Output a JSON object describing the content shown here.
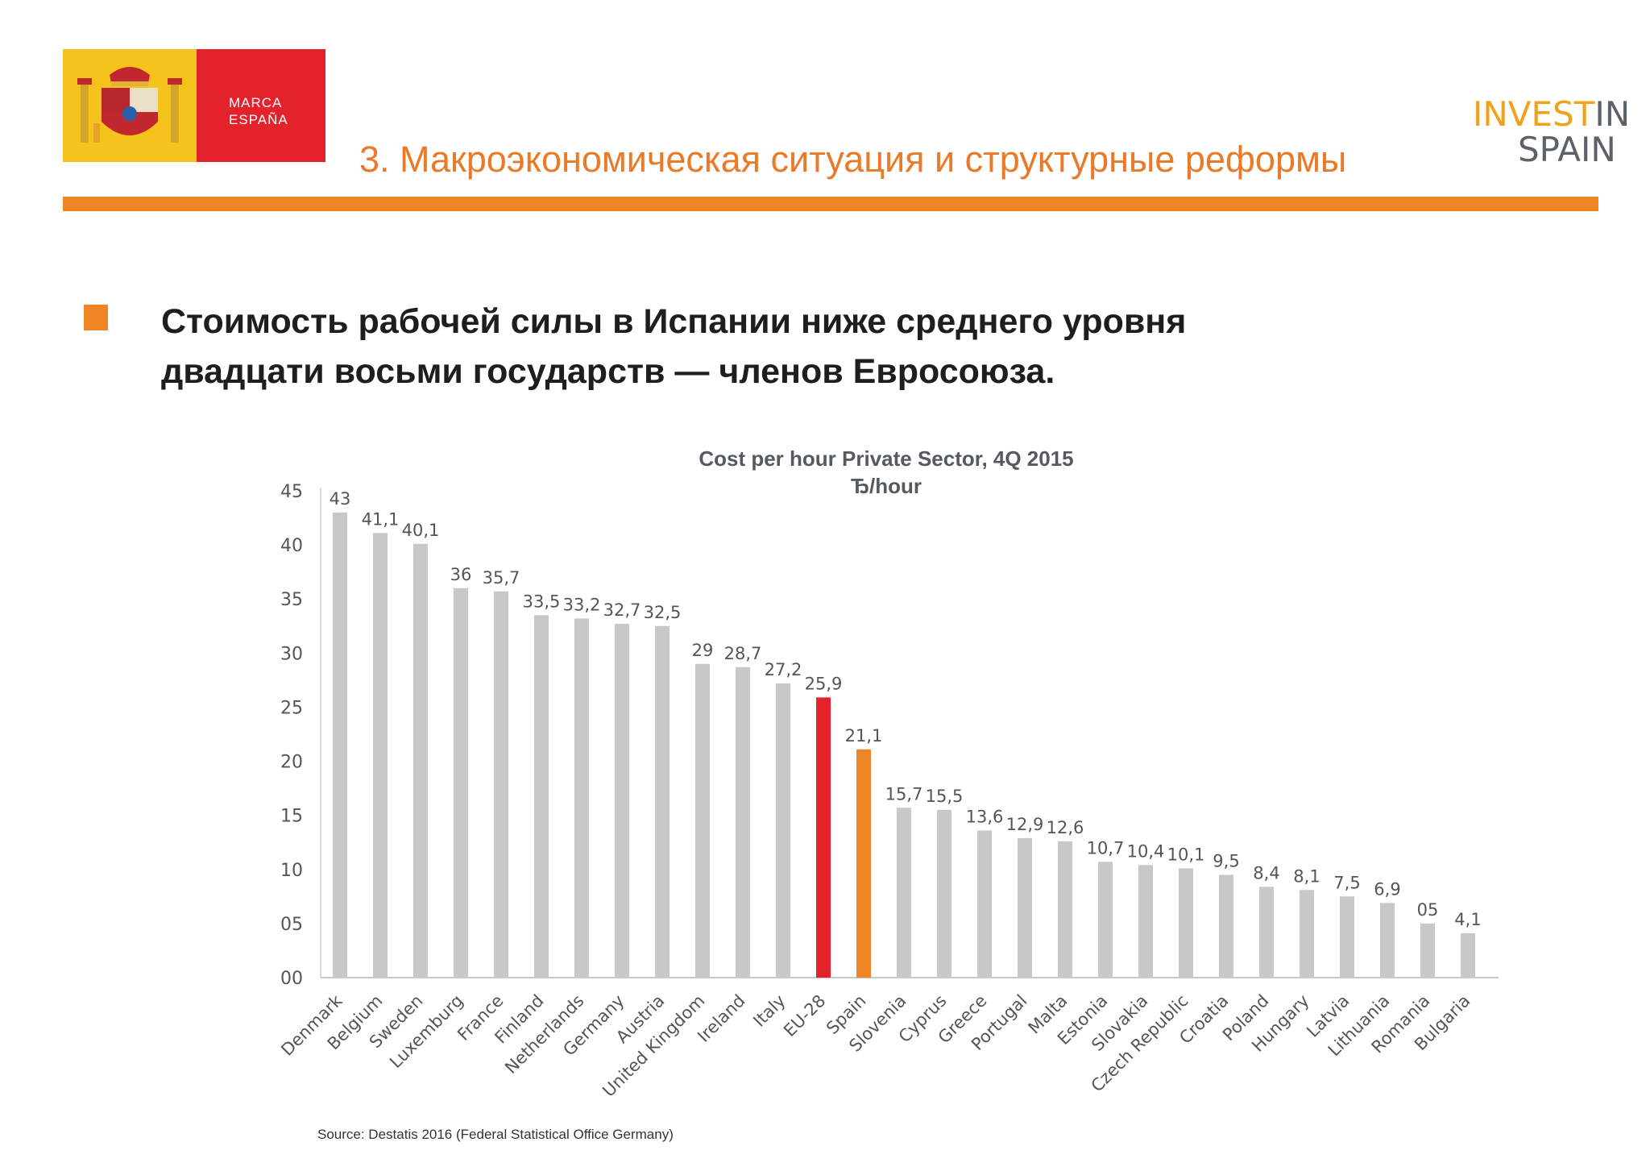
{
  "header": {
    "logo_left_text": [
      "MARCA",
      "ESPAÑA"
    ],
    "logo_right": {
      "line1": "INVEST",
      "line1_b": "IN",
      "line2": "SPAIN"
    },
    "title": "3. Макроэкономическая ситуация и структурные реформы"
  },
  "headline": {
    "line1": "Стоимость рабочей силы в Испании ниже среднего уровня",
    "line2": "двадцати восьми государств — членов Евросоюза."
  },
  "colors": {
    "accent": "#f08526",
    "eu": "#e4222c",
    "bar": "#c8c8c8",
    "title": "#ea7a27"
  },
  "chart_data": {
    "type": "bar",
    "title": "Cost per hour Private Sector, 4Q 2015",
    "subtitle": "Ђ/hour",
    "ylim": [
      0,
      45
    ],
    "yticks": [
      "00",
      "05",
      "10",
      "15",
      "20",
      "25",
      "30",
      "35",
      "40",
      "45"
    ],
    "categories": [
      "Denmark",
      "Belgium",
      "Sweden",
      "Luxemburg",
      "France",
      "Finland",
      "Netherlands",
      "Germany",
      "Austria",
      "United Kingdom",
      "Ireland",
      "Italy",
      "EU-28",
      "Spain",
      "Slovenia",
      "Cyprus",
      "Greece",
      "Portugal",
      "Malta",
      "Estonia",
      "Slovakia",
      "Czech Republic",
      "Croatia",
      "Poland",
      "Hungary",
      "Latvia",
      "Lithuania",
      "Romania",
      "Bulgaria"
    ],
    "values": [
      43,
      41.1,
      40.1,
      36,
      35.7,
      33.5,
      33.2,
      32.7,
      32.5,
      29,
      28.7,
      27.2,
      25.9,
      21.1,
      15.7,
      15.5,
      13.6,
      12.9,
      12.6,
      10.7,
      10.4,
      10.1,
      9.5,
      8.4,
      8.1,
      7.5,
      6.9,
      5,
      4.1
    ],
    "labels": [
      "43",
      "41,1",
      "40,1",
      "36",
      "35,7",
      "33,5",
      "33,2",
      "32,7",
      "32,5",
      "29",
      "28,7",
      "27,2",
      "25,9",
      "21,1",
      "15,7",
      "15,5",
      "13,6",
      "12,9",
      "12,6",
      "10,7",
      "10,4",
      "10,1",
      "9,5",
      "8,4",
      "8,1",
      "7,5",
      "6,9",
      "05",
      "4,1"
    ],
    "highlight": {
      "EU-28": "#e4222c",
      "Spain": "#f08526"
    },
    "xlabel": "",
    "ylabel": "",
    "grid": false
  },
  "source": "Source: Destatis 2016 (Federal Statistical Office Germany)"
}
